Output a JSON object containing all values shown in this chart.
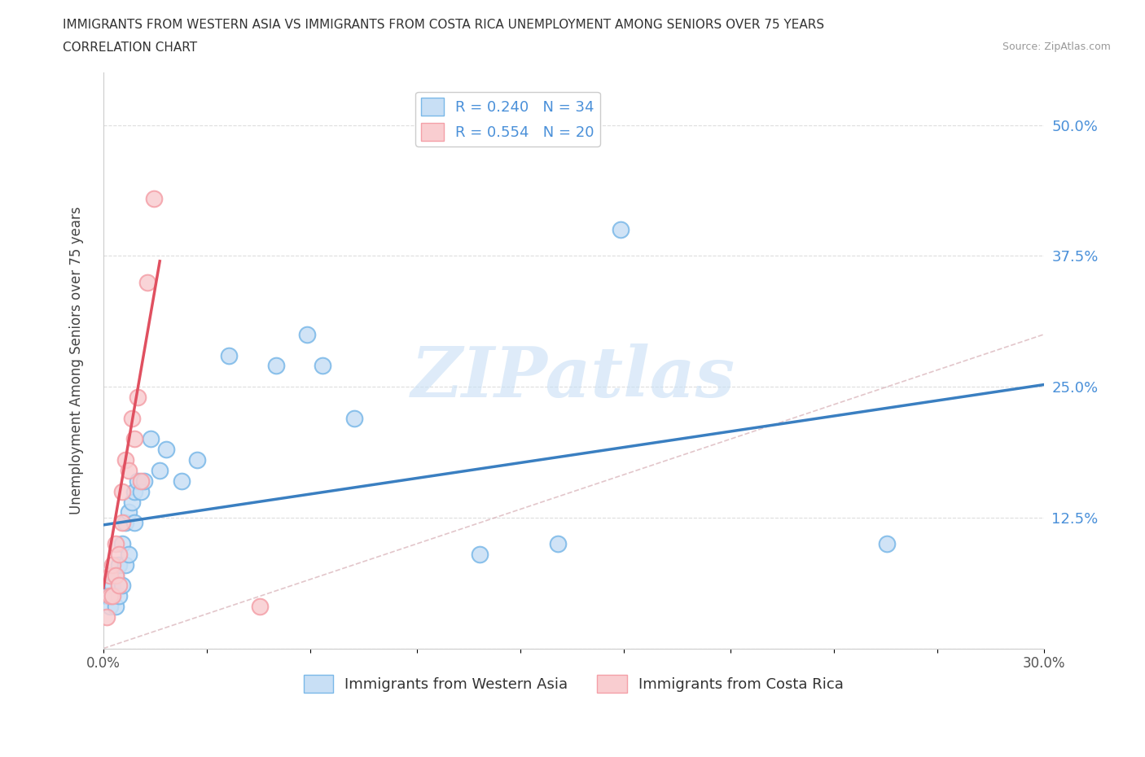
{
  "title_line1": "IMMIGRANTS FROM WESTERN ASIA VS IMMIGRANTS FROM COSTA RICA UNEMPLOYMENT AMONG SENIORS OVER 75 YEARS",
  "title_line2": "CORRELATION CHART",
  "source": "Source: ZipAtlas.com",
  "ylabel": "Unemployment Among Seniors over 75 years",
  "xlim": [
    0.0,
    0.3
  ],
  "ylim": [
    0.0,
    0.55
  ],
  "yticks": [
    0.0,
    0.125,
    0.25,
    0.375,
    0.5
  ],
  "ytick_labels_right": [
    "",
    "12.5%",
    "25.0%",
    "37.5%",
    "50.0%"
  ],
  "xticks": [
    0.0,
    0.033,
    0.066,
    0.1,
    0.133,
    0.166,
    0.2,
    0.233,
    0.266,
    0.3
  ],
  "xtick_labels": [
    "0.0%",
    "",
    "",
    "",
    "",
    "",
    "",
    "",
    "",
    "30.0%"
  ],
  "legend_r1": "R = 0.240   N = 34",
  "legend_r2": "R = 0.554   N = 20",
  "legend_label1": "Immigrants from Western Asia",
  "legend_label2": "Immigrants from Costa Rica",
  "color_blue": "#7ab8e8",
  "color_pink": "#f4a0a8",
  "color_blue_line": "#3a7fc1",
  "color_pink_line": "#e05060",
  "color_blue_light": "#c8dff5",
  "color_pink_light": "#f9cdd0",
  "watermark": "ZIPatlas",
  "western_asia_x": [
    0.001,
    0.002,
    0.003,
    0.003,
    0.004,
    0.004,
    0.005,
    0.005,
    0.006,
    0.006,
    0.007,
    0.007,
    0.008,
    0.008,
    0.009,
    0.01,
    0.01,
    0.011,
    0.012,
    0.013,
    0.015,
    0.018,
    0.02,
    0.025,
    0.03,
    0.04,
    0.055,
    0.065,
    0.07,
    0.08,
    0.12,
    0.145,
    0.25,
    0.165
  ],
  "western_asia_y": [
    0.05,
    0.04,
    0.05,
    0.06,
    0.04,
    0.07,
    0.05,
    0.08,
    0.1,
    0.06,
    0.12,
    0.08,
    0.13,
    0.09,
    0.14,
    0.15,
    0.12,
    0.16,
    0.15,
    0.16,
    0.2,
    0.17,
    0.19,
    0.16,
    0.18,
    0.28,
    0.27,
    0.3,
    0.27,
    0.22,
    0.09,
    0.1,
    0.1,
    0.4
  ],
  "costa_rica_x": [
    0.001,
    0.002,
    0.002,
    0.003,
    0.003,
    0.004,
    0.004,
    0.005,
    0.005,
    0.006,
    0.006,
    0.007,
    0.008,
    0.009,
    0.01,
    0.011,
    0.012,
    0.014,
    0.016,
    0.05
  ],
  "costa_rica_y": [
    0.03,
    0.05,
    0.07,
    0.05,
    0.08,
    0.07,
    0.1,
    0.06,
    0.09,
    0.12,
    0.15,
    0.18,
    0.17,
    0.22,
    0.2,
    0.24,
    0.16,
    0.35,
    0.43,
    0.04
  ],
  "blue_trend_x0": 0.0,
  "blue_trend_y0": 0.118,
  "blue_trend_x1": 0.3,
  "blue_trend_y1": 0.252,
  "pink_trend_x0": 0.0,
  "pink_trend_y0": 0.058,
  "pink_trend_x1": 0.018,
  "pink_trend_y1": 0.37,
  "diag_line_x0": 0.0,
  "diag_line_y0": 0.0,
  "diag_line_x1": 0.3,
  "diag_line_y1": 0.3
}
